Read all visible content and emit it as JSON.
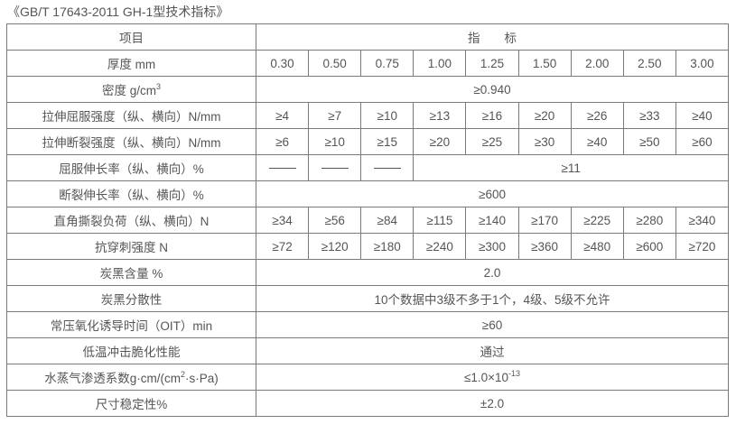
{
  "title": "《GB/T 17643-2011 GH-1型技术指标》",
  "header": {
    "item": "项目",
    "spec": "指　　标"
  },
  "thickness": {
    "label": "厚度 mm",
    "values": [
      "0.30",
      "0.50",
      "0.75",
      "1.00",
      "1.25",
      "1.50",
      "2.00",
      "2.50",
      "3.00"
    ]
  },
  "density": {
    "label": "密度 g/cm",
    "label_sup": "3",
    "value": "≥0.940"
  },
  "yield_strength": {
    "label": "拉伸屈服强度（纵、横向）N/mm",
    "values": [
      "≥4",
      "≥7",
      "≥10",
      "≥13",
      "≥16",
      "≥20",
      "≥26",
      "≥33",
      "≥40"
    ]
  },
  "break_strength": {
    "label": "拉伸断裂强度（纵、横向）N/mm",
    "values": [
      "≥6",
      "≥10",
      "≥15",
      "≥20",
      "≥25",
      "≥30",
      "≥40",
      "≥50",
      "≥60"
    ]
  },
  "yield_elongation": {
    "label": "屈服伸长率（纵、横向）%",
    "value": "≥11"
  },
  "break_elongation": {
    "label": "断裂伸长率（纵、横向）%",
    "value": "≥600"
  },
  "tear_load": {
    "label": "直角撕裂负荷（纵、横向）N",
    "values": [
      "≥34",
      "≥56",
      "≥84",
      "≥115",
      "≥140",
      "≥170",
      "≥225",
      "≥280",
      "≥340"
    ]
  },
  "puncture": {
    "label": "抗穿刺强度 N",
    "values": [
      "≥72",
      "≥120",
      "≥180",
      "≥240",
      "≥300",
      "≥360",
      "≥480",
      "≥600",
      "≥720"
    ]
  },
  "carbon_content": {
    "label": "炭黑含量 %",
    "value": "2.0"
  },
  "carbon_dispersion": {
    "label": "炭黑分散性",
    "value": "10个数据中3级不多于1个，4级、5级不允许"
  },
  "oit": {
    "label": "常压氧化诱导时间（OIT）min",
    "value": "≥60"
  },
  "low_temp": {
    "label": "低温冲击脆化性能",
    "value": "通过"
  },
  "vapor": {
    "label": "水蒸气渗透系数g·cm/(cm",
    "label_sup": "2",
    "label_tail": "·s·Pa)",
    "value": "≤1.0×10",
    "value_sup": "-13"
  },
  "dimension": {
    "label": "尺寸稳定性%",
    "value": "±2.0"
  }
}
